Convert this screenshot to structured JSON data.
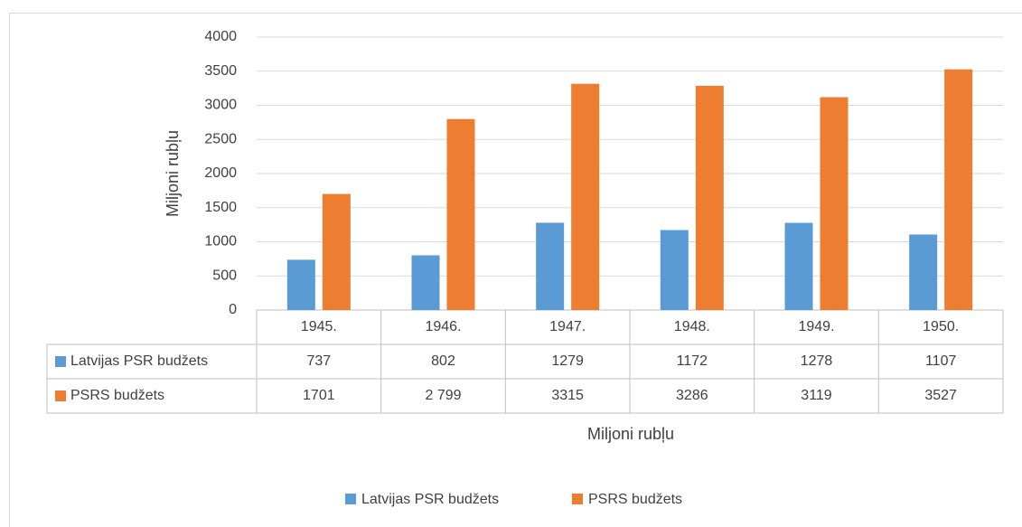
{
  "chart_data": {
    "type": "bar",
    "categories": [
      "1945.",
      "1946.",
      "1947.",
      "1948.",
      "1949.",
      "1950."
    ],
    "series": [
      {
        "name": "Latvijas PSR budžets",
        "color": "#5b9bd5",
        "values": [
          737,
          802,
          1279,
          1172,
          1278,
          1107
        ]
      },
      {
        "name": "PSRS budžets",
        "color": "#ed7d31",
        "values": [
          1701,
          2799,
          3315,
          3286,
          3119,
          3527
        ],
        "value_labels": [
          "1701",
          "2 799",
          "3315",
          "3286",
          "3119",
          "3527"
        ]
      }
    ],
    "y_label": "Miljoni rubļu",
    "x_label": "Miljoni rubļu",
    "ylim": [
      0,
      4000
    ],
    "yticks": [
      0,
      500,
      1000,
      1500,
      2000,
      2500,
      3000,
      3500,
      4000
    ],
    "grid": true,
    "legend": "bottom"
  }
}
